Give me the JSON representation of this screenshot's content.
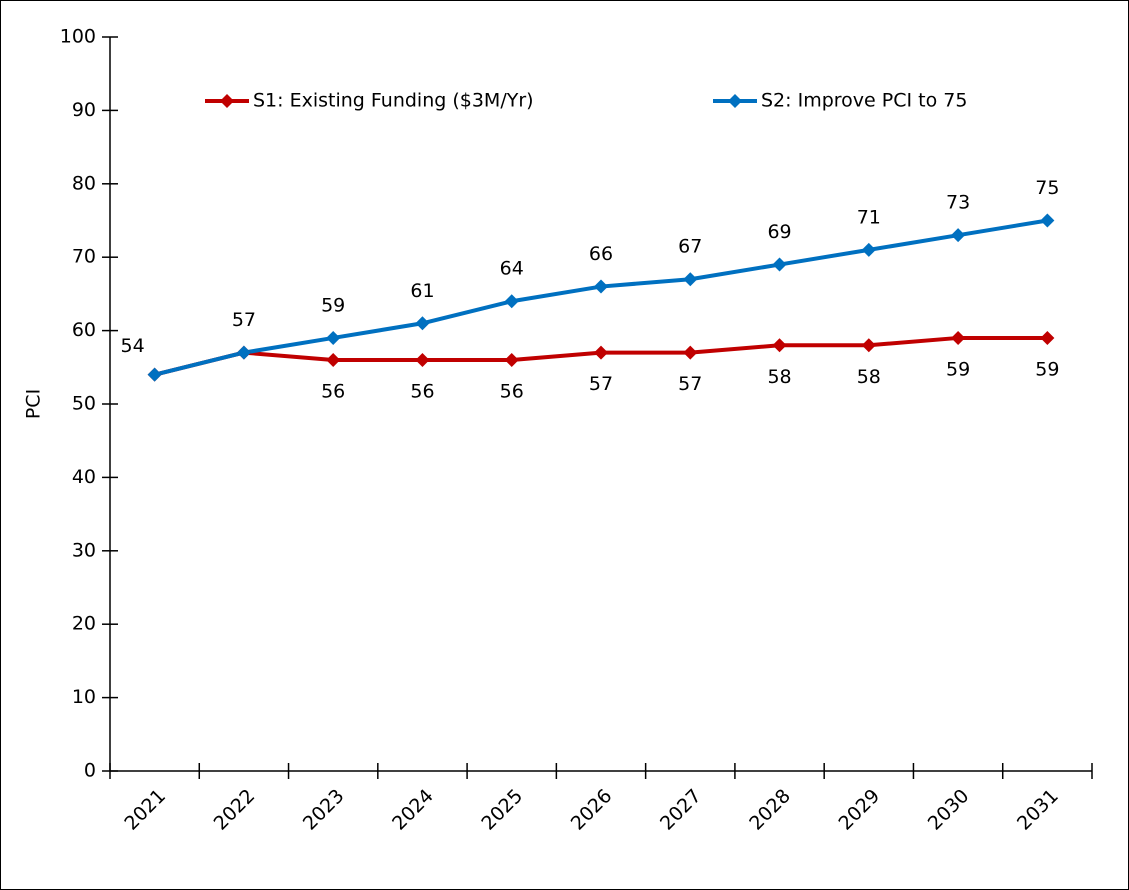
{
  "chart_data": {
    "type": "line",
    "y_label": "PCI",
    "categories": [
      "2021",
      "2022",
      "2023",
      "2024",
      "2025",
      "2026",
      "2027",
      "2028",
      "2029",
      "2030",
      "2031"
    ],
    "series": [
      {
        "name": "S1: Existing Funding ($3M/Yr)",
        "color": "#c00000",
        "values": [
          54,
          57,
          56,
          56,
          56,
          57,
          57,
          58,
          58,
          59,
          59
        ]
      },
      {
        "name": "S2: Improve PCI to 75",
        "color": "#0070c0",
        "values": [
          54,
          57,
          59,
          61,
          64,
          66,
          67,
          69,
          71,
          73,
          75
        ]
      }
    ],
    "ylim": [
      0,
      100
    ],
    "yticks": [
      0,
      10,
      20,
      30,
      40,
      50,
      60,
      70,
      80,
      90,
      100
    ],
    "legend": "top"
  }
}
